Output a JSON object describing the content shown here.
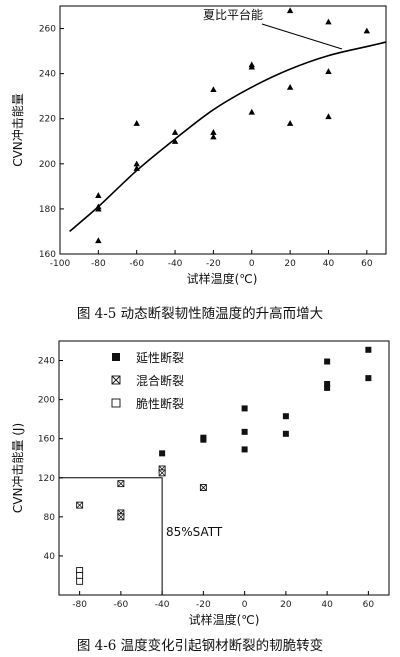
{
  "chart_data": [
    {
      "type": "scatter",
      "xlabel": "试样温度(℃)",
      "ylabel": "CVN冲击能量",
      "caption": "图 4-5  动态断裂韧性随温度的升高而增大",
      "xlim": [
        -100,
        70
      ],
      "ylim": [
        160,
        270
      ],
      "xticks": [
        -100,
        -80,
        -60,
        -40,
        -20,
        0,
        20,
        40,
        60
      ],
      "yticks": [
        160,
        180,
        200,
        220,
        240,
        260
      ],
      "annotation": "夏比平台能",
      "points": [
        {
          "x": -80,
          "y": 186
        },
        {
          "x": -80,
          "y": 181
        },
        {
          "x": -80,
          "y": 180
        },
        {
          "x": -80,
          "y": 166
        },
        {
          "x": -60,
          "y": 218
        },
        {
          "x": -60,
          "y": 200
        },
        {
          "x": -60,
          "y": 198
        },
        {
          "x": -40,
          "y": 214
        },
        {
          "x": -40,
          "y": 210
        },
        {
          "x": -20,
          "y": 233
        },
        {
          "x": -20,
          "y": 214
        },
        {
          "x": -20,
          "y": 212
        },
        {
          "x": 0,
          "y": 244
        },
        {
          "x": 0,
          "y": 243
        },
        {
          "x": 0,
          "y": 223
        },
        {
          "x": 20,
          "y": 268
        },
        {
          "x": 20,
          "y": 234
        },
        {
          "x": 20,
          "y": 218
        },
        {
          "x": 40,
          "y": 263
        },
        {
          "x": 40,
          "y": 241
        },
        {
          "x": 40,
          "y": 221
        },
        {
          "x": 60,
          "y": 259
        }
      ],
      "fit_curve": [
        {
          "x": -95,
          "y": 170
        },
        {
          "x": -80,
          "y": 181
        },
        {
          "x": -60,
          "y": 197
        },
        {
          "x": -40,
          "y": 211
        },
        {
          "x": -20,
          "y": 224
        },
        {
          "x": 0,
          "y": 234
        },
        {
          "x": 20,
          "y": 242
        },
        {
          "x": 40,
          "y": 248
        },
        {
          "x": 60,
          "y": 252
        },
        {
          "x": 70,
          "y": 254
        }
      ]
    },
    {
      "type": "scatter",
      "xlabel": "试样温度(℃)",
      "ylabel": "CVN冲击能量 (J)",
      "caption": "图 4-6  温度变化引起钢材断裂的韧脆转变",
      "xlim": [
        -90,
        70
      ],
      "ylim": [
        0,
        260
      ],
      "xticks": [
        -80,
        -60,
        -40,
        -20,
        0,
        20,
        40,
        60
      ],
      "yticks": [
        40,
        80,
        120,
        160,
        200,
        240
      ],
      "annotation": "85%SATT",
      "satt": {
        "x": -40,
        "y": 120
      },
      "legend_position": "top-left",
      "series": [
        {
          "name": "延性断裂",
          "marker": "filled-square",
          "points": [
            {
              "x": -40,
              "y": 145
            },
            {
              "x": -20,
              "y": 161
            },
            {
              "x": -20,
              "y": 159
            },
            {
              "x": 0,
              "y": 191
            },
            {
              "x": 0,
              "y": 167
            },
            {
              "x": 0,
              "y": 149
            },
            {
              "x": 20,
              "y": 183
            },
            {
              "x": 20,
              "y": 165
            },
            {
              "x": 40,
              "y": 239
            },
            {
              "x": 40,
              "y": 216
            },
            {
              "x": 40,
              "y": 212
            },
            {
              "x": 60,
              "y": 251
            },
            {
              "x": 60,
              "y": 222
            }
          ]
        },
        {
          "name": "混合断裂",
          "marker": "crossed-square",
          "points": [
            {
              "x": -80,
              "y": 92
            },
            {
              "x": -60,
              "y": 114
            },
            {
              "x": -60,
              "y": 84
            },
            {
              "x": -60,
              "y": 80
            },
            {
              "x": -40,
              "y": 129
            },
            {
              "x": -40,
              "y": 125
            },
            {
              "x": -20,
              "y": 110
            }
          ]
        },
        {
          "name": "脆性断裂",
          "marker": "open-square",
          "points": [
            {
              "x": -80,
              "y": 25
            },
            {
              "x": -80,
              "y": 20
            },
            {
              "x": -80,
              "y": 14
            }
          ]
        }
      ]
    }
  ]
}
